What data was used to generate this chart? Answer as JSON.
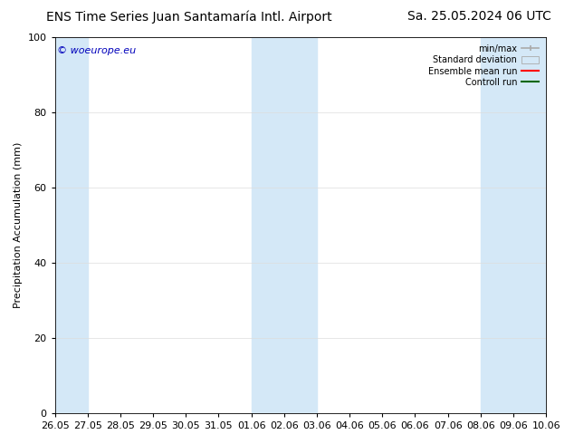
{
  "title_left": "ENS Time Series Juan Santamaría Intl. Airport",
  "title_right": "Sa. 25.05.2024 06 UTC",
  "ylabel": "Precipitation Accumulation (mm)",
  "watermark": "© woeurope.eu",
  "ylim": [
    0,
    100
  ],
  "yticks": [
    0,
    20,
    40,
    60,
    80,
    100
  ],
  "xtick_labels": [
    "26.05",
    "27.05",
    "28.05",
    "29.05",
    "30.05",
    "31.05",
    "01.06",
    "02.06",
    "03.06",
    "04.06",
    "05.06",
    "06.06",
    "07.06",
    "08.06",
    "09.06",
    "10.06"
  ],
  "xtick_positions": [
    0,
    1,
    2,
    3,
    4,
    5,
    6,
    7,
    8,
    9,
    10,
    11,
    12,
    13,
    14,
    15
  ],
  "shaded_bands": [
    {
      "x_start": 0,
      "x_end": 1,
      "color": "#d4e8f7",
      "alpha": 1.0
    },
    {
      "x_start": 6,
      "x_end": 8,
      "color": "#d4e8f7",
      "alpha": 1.0
    },
    {
      "x_start": 13,
      "x_end": 15,
      "color": "#d4e8f7",
      "alpha": 1.0
    }
  ],
  "background_color": "#ffffff",
  "plot_bg_color": "#ffffff",
  "grid_color": "#dddddd",
  "border_color": "#000000",
  "minmax_color": "#aaaaaa",
  "std_color": "#d4e8f7",
  "std_edge_color": "#aaaaaa",
  "ensemble_mean_color": "#ff0000",
  "control_color": "#006600",
  "legend_labels": [
    "min/max",
    "Standard deviation",
    "Ensemble mean run",
    "Controll run"
  ],
  "title_fontsize": 10,
  "axis_label_fontsize": 8,
  "tick_fontsize": 8,
  "watermark_color": "#0000bb",
  "watermark_fontsize": 8
}
